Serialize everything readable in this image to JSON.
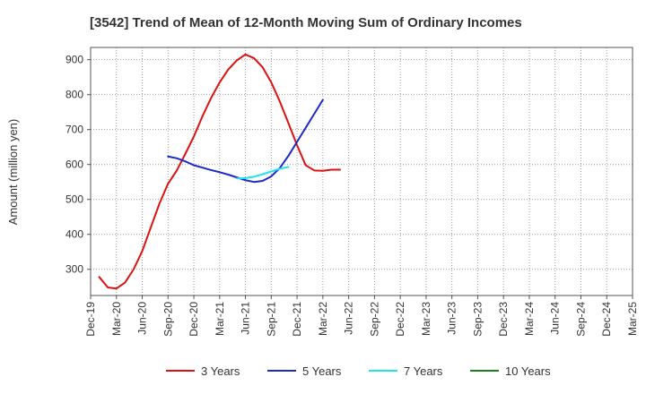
{
  "chart_data": {
    "type": "line",
    "title": "[3542]  Trend of Mean of 12-Month Moving Sum of Ordinary Incomes",
    "xlabel": "",
    "ylabel": "Amount (million yen)",
    "ylim": [
      225,
      935
    ],
    "y_ticks": [
      300,
      400,
      500,
      600,
      700,
      800,
      900
    ],
    "x_tick_labels": [
      "Dec-19",
      "Mar-20",
      "Jun-20",
      "Sep-20",
      "Dec-20",
      "Mar-21",
      "Jun-21",
      "Sep-21",
      "Dec-21",
      "Mar-22",
      "Jun-22",
      "Sep-22",
      "Dec-22",
      "Mar-23",
      "Jun-23",
      "Sep-23",
      "Dec-23",
      "Mar-24",
      "Jun-24",
      "Sep-24",
      "Dec-24",
      "Mar-25"
    ],
    "grid": true,
    "legend_position": "bottom",
    "series": [
      {
        "name": "3 Years",
        "color": "#dd1111",
        "start_index": 1,
        "values": [
          278,
          248,
          245,
          262,
          300,
          352,
          420,
          488,
          545,
          582,
          630,
          680,
          738,
          790,
          835,
          872,
          898,
          915,
          904,
          878,
          835,
          780,
          718,
          655,
          598,
          583,
          582,
          585,
          585
        ]
      },
      {
        "name": "5 Years",
        "color": "#1f28c8",
        "start_index": 9,
        "values": [
          623,
          618,
          609,
          598,
          591,
          584,
          578,
          571,
          563,
          555,
          550,
          553,
          566,
          590,
          625,
          665,
          705,
          745,
          785
        ]
      },
      {
        "name": "7 Years",
        "color": "#22e2f0",
        "start_index": 17,
        "values": [
          560,
          561,
          565,
          572,
          580,
          588,
          593
        ]
      },
      {
        "name": "10 Years",
        "color": "#1e7f1e",
        "start_index": 0,
        "values": []
      }
    ]
  }
}
